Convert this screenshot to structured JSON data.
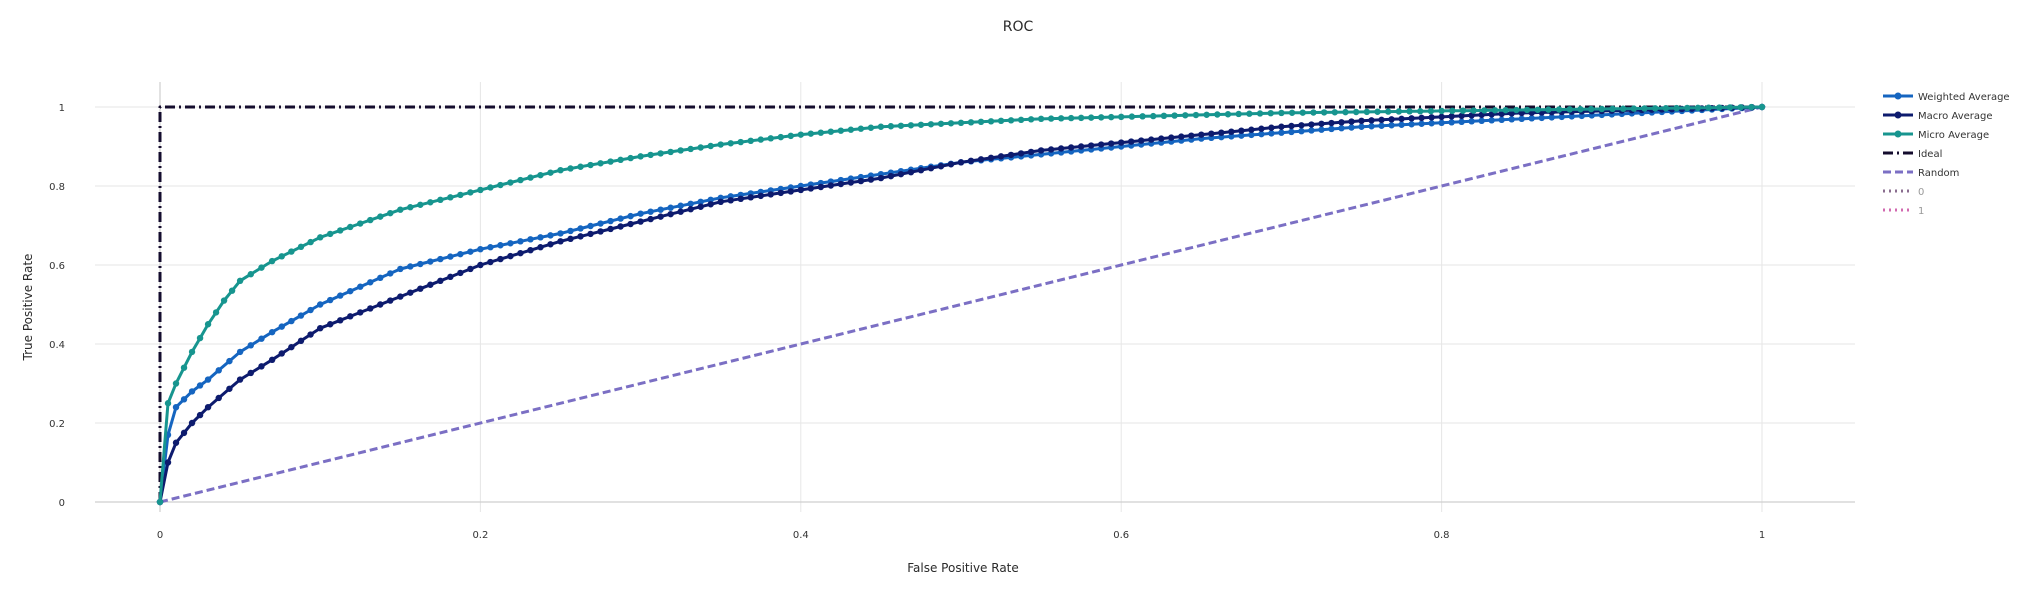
{
  "chart_data": {
    "type": "line",
    "title": "ROC",
    "xlabel": "False Positive Rate",
    "ylabel": "True Positive Rate",
    "xlim": [
      -0.05,
      1.05
    ],
    "ylim": [
      -0.02,
      1.05
    ],
    "x_ticks": [
      0,
      0.2,
      0.4,
      0.6,
      0.8,
      1
    ],
    "x_tick_labels": [
      "0",
      "0.2",
      "0.4",
      "0.6",
      "0.8",
      "1"
    ],
    "y_ticks": [
      0,
      0.2,
      0.4,
      0.6,
      0.8,
      1
    ],
    "y_tick_labels": [
      "0",
      "0.2",
      "0.4",
      "0.6",
      "0.8",
      "1"
    ],
    "grid": true,
    "legend_position": "right",
    "series": [
      {
        "name": "Weighted Average",
        "color": "#1565c0",
        "dash": "solid",
        "markers": true,
        "x": [
          0,
          0.005,
          0.01,
          0.02,
          0.03,
          0.05,
          0.07,
          0.1,
          0.15,
          0.2,
          0.25,
          0.3,
          0.35,
          0.4,
          0.45,
          0.5,
          0.55,
          0.6,
          0.65,
          0.7,
          0.75,
          0.8,
          0.85,
          0.9,
          0.95,
          1
        ],
        "y": [
          0,
          0.17,
          0.24,
          0.28,
          0.31,
          0.38,
          0.43,
          0.5,
          0.59,
          0.64,
          0.68,
          0.73,
          0.77,
          0.8,
          0.83,
          0.86,
          0.88,
          0.9,
          0.92,
          0.935,
          0.95,
          0.96,
          0.97,
          0.98,
          0.99,
          1.0
        ]
      },
      {
        "name": "Macro Average",
        "color": "#0d1b6e",
        "dash": "solid",
        "markers": true,
        "x": [
          0,
          0.005,
          0.01,
          0.02,
          0.03,
          0.05,
          0.07,
          0.1,
          0.15,
          0.2,
          0.25,
          0.3,
          0.35,
          0.4,
          0.45,
          0.5,
          0.55,
          0.6,
          0.65,
          0.7,
          0.75,
          0.8,
          0.85,
          0.9,
          0.95,
          1
        ],
        "y": [
          0,
          0.1,
          0.15,
          0.2,
          0.24,
          0.31,
          0.36,
          0.44,
          0.52,
          0.6,
          0.66,
          0.71,
          0.76,
          0.79,
          0.82,
          0.86,
          0.89,
          0.91,
          0.93,
          0.95,
          0.965,
          0.975,
          0.985,
          0.99,
          0.995,
          1.0
        ]
      },
      {
        "name": "Micro Average",
        "color": "#17958f",
        "dash": "solid",
        "markers": true,
        "x": [
          0,
          0.005,
          0.01,
          0.02,
          0.03,
          0.04,
          0.05,
          0.07,
          0.1,
          0.15,
          0.2,
          0.25,
          0.3,
          0.35,
          0.4,
          0.45,
          0.5,
          0.55,
          0.6,
          0.7,
          0.8,
          0.9,
          1
        ],
        "y": [
          0,
          0.25,
          0.3,
          0.38,
          0.45,
          0.51,
          0.56,
          0.61,
          0.67,
          0.74,
          0.79,
          0.84,
          0.875,
          0.905,
          0.93,
          0.95,
          0.96,
          0.97,
          0.975,
          0.985,
          0.99,
          0.995,
          1.0
        ]
      },
      {
        "name": "Ideal",
        "color": "#140c2e",
        "dash": "dashdot",
        "markers": false,
        "x": [
          0,
          0,
          1
        ],
        "y": [
          0,
          1,
          1
        ]
      },
      {
        "name": "Random",
        "color": "#7b6fc4",
        "dash": "dash",
        "markers": false,
        "x": [
          0,
          1
        ],
        "y": [
          0,
          1
        ]
      },
      {
        "name": "0",
        "color": "#8a6d8f",
        "dash": "dot",
        "markers": false,
        "x": [],
        "y": []
      },
      {
        "name": "1",
        "color": "#d26ab0",
        "dash": "dot",
        "markers": false,
        "x": [],
        "y": []
      }
    ]
  }
}
